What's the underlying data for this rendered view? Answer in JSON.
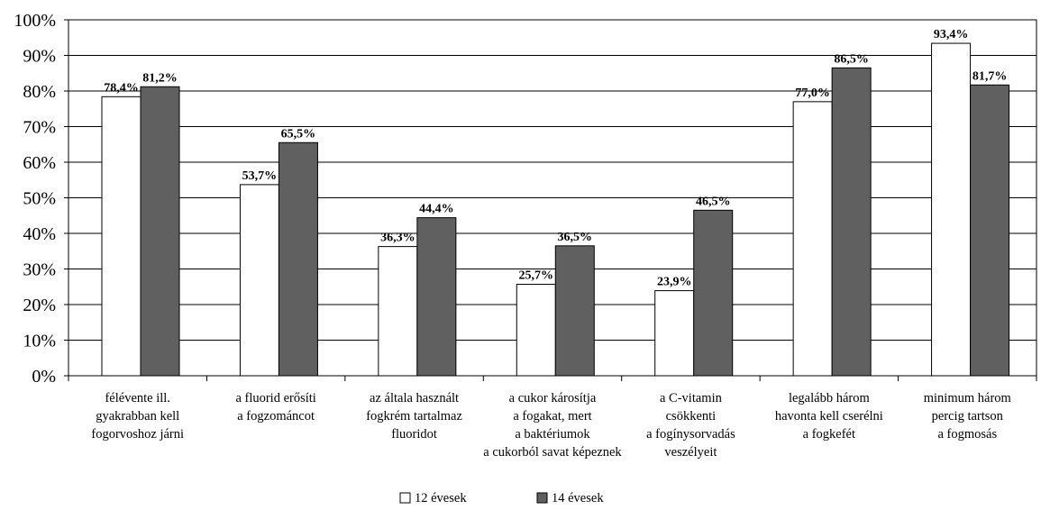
{
  "chart_data": {
    "type": "bar",
    "categories": [
      [
        "félévente ill.",
        "gyakrabban kell",
        "fogorvoshoz járni"
      ],
      [
        "a fluorid erősíti",
        "a fogzománcot"
      ],
      [
        "az általa használt",
        "fogkrém tartalmaz",
        "fluoridot"
      ],
      [
        "a cukor károsítja",
        "a fogakat, mert",
        "a baktériumok",
        "a cukorból savat képeznek"
      ],
      [
        "a C-vitamin",
        "csökkenti",
        "a fogínysorvadás",
        "veszélyeit"
      ],
      [
        "legalább három",
        "havonta kell cserélni",
        "a fogkefét"
      ],
      [
        "minimum három",
        "percig tartson",
        "a fogmosás"
      ]
    ],
    "series": [
      {
        "name": "12 évesek",
        "color": "#ffffff",
        "values": [
          78.4,
          53.7,
          36.3,
          25.7,
          23.9,
          77.0,
          93.4
        ],
        "labels": [
          "78,4%",
          "53,7%",
          "36,3%",
          "25,7%",
          "23,9%",
          "77,0%",
          "93,4%"
        ]
      },
      {
        "name": "14 évesek",
        "color": "#606060",
        "values": [
          81.2,
          65.5,
          44.4,
          36.5,
          46.5,
          86.5,
          81.7
        ],
        "labels": [
          "81,2%",
          "65,5%",
          "44,4%",
          "36,5%",
          "46,5%",
          "86,5%",
          "81,7%"
        ]
      }
    ],
    "y_ticks": [
      "0%",
      "10%",
      "20%",
      "30%",
      "40%",
      "50%",
      "60%",
      "70%",
      "80%",
      "90%",
      "100%"
    ],
    "ylim": [
      0,
      100
    ],
    "grid": true,
    "legend_position": "bottom"
  }
}
